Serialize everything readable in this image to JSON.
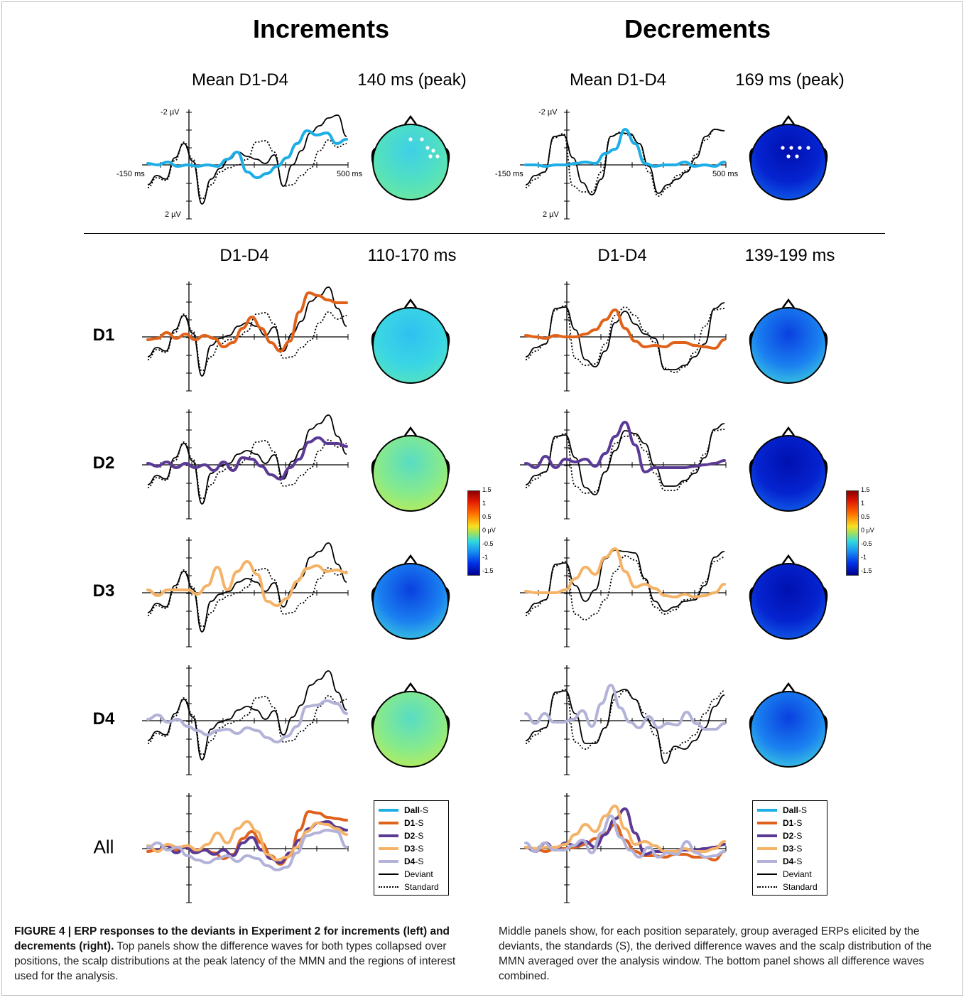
{
  "headings": {
    "left": "Increments",
    "right": "Decrements"
  },
  "top_labels": {
    "left": {
      "waves": "Mean D1-D4",
      "map": "140 ms (peak)"
    },
    "right": {
      "waves": "Mean D1-D4",
      "map": "169 ms (peak)"
    }
  },
  "axis_labels": {
    "y_top": "-2 µV",
    "y_bottom": "2 µV",
    "x_left": "-150 ms",
    "x_right": "500 ms"
  },
  "mid_labels": {
    "left": {
      "waves": "D1-D4",
      "map": "110-170 ms"
    },
    "right": {
      "waves": "D1-D4",
      "map": "139-199 ms"
    }
  },
  "row_labels": [
    "D1",
    "D2",
    "D3",
    "D4",
    "All"
  ],
  "colorbar": {
    "ticks": [
      "1.5",
      "1",
      "0.5",
      "0 µV",
      "-0.5",
      "-1",
      "-1.5"
    ]
  },
  "legend": [
    {
      "bold": "Dall",
      "rest": "-S",
      "color": "#1eaee6",
      "style": "solid"
    },
    {
      "bold": "D1",
      "rest": "-S",
      "color": "#e0621a",
      "style": "solid"
    },
    {
      "bold": "D2",
      "rest": "-S",
      "color": "#5b3a96",
      "style": "solid"
    },
    {
      "bold": "D3",
      "rest": "-S",
      "color": "#f4b367",
      "style": "solid"
    },
    {
      "bold": "D4",
      "rest": "-S",
      "color": "#b3b2d8",
      "style": "solid"
    },
    {
      "bold": "",
      "rest": "Deviant",
      "color": "#000000",
      "style": "solid"
    },
    {
      "bold": "",
      "rest": "Standard",
      "color": "#000000",
      "style": "dotted"
    }
  ],
  "scalp_maps": {
    "left": [
      "cyan-green",
      "cyan",
      "green-yellow",
      "blue",
      "green-yellow"
    ],
    "right": [
      "deep-blue",
      "blue",
      "deep-blue",
      "deep-blue",
      "blue"
    ]
  },
  "colors": {
    "dall": "#1eaee6",
    "d1": "#e0621a",
    "d2": "#5b3a96",
    "d3": "#f4b367",
    "d4": "#b3b2d8"
  },
  "caption": {
    "title": "FIGURE 4 | ERP responses to the deviants in Experiment 2 for increments (left) and decrements (right).",
    "left_text": "Top panels show the difference waves for both types collapsed over positions, the scalp distributions at the peak latency of the MMN and the regions of interest used for the analysis.",
    "right_text": "Middle panels show, for each position separately, group averaged ERPs elicited by the deviants, the standards (S), the derived difference waves and the scalp distribution of the MMN averaged over the analysis window. The bottom panel shows all difference waves combined."
  }
}
